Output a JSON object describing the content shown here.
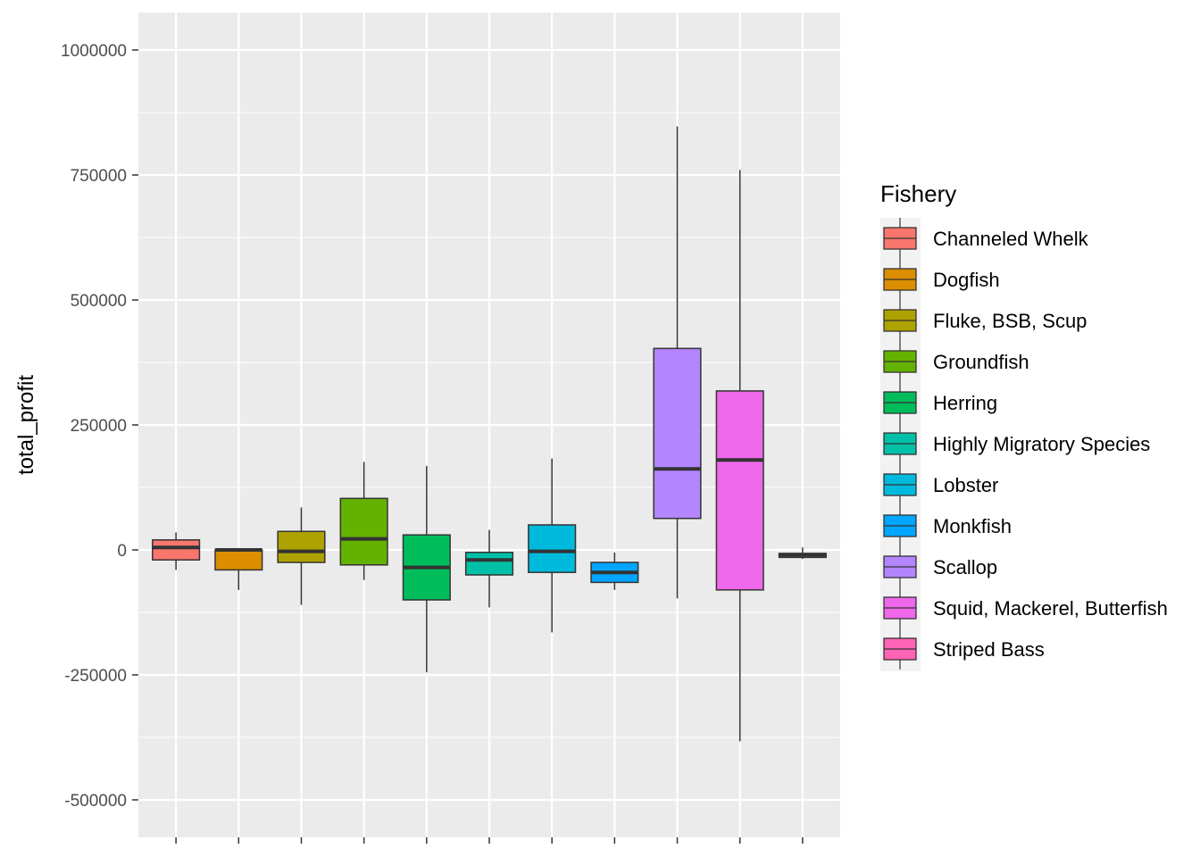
{
  "chart_data": {
    "type": "boxplot",
    "title": "",
    "xlabel": "",
    "ylabel": "total_profit",
    "ylim": [
      -575000,
      1075000
    ],
    "y_ticks": [
      -500000,
      -250000,
      0,
      250000,
      500000,
      750000,
      1000000
    ],
    "y_tick_labels": [
      "-500000",
      "-250000",
      "0",
      "250000",
      "500000",
      "750000",
      "1000000"
    ],
    "x_tick_labels_shown": false,
    "grid": true,
    "legend": {
      "title": "Fishery",
      "position": "right"
    },
    "series": [
      {
        "name": "Channeled Whelk",
        "color": "#F8766D",
        "whisker_low": -40000,
        "q1": -20000,
        "median": 5000,
        "q3": 20000,
        "whisker_high": 35000
      },
      {
        "name": "Dogfish",
        "color": "#DB8E00",
        "whisker_low": -80000,
        "q1": -40000,
        "median": 0,
        "q3": 0,
        "whisker_high": 0
      },
      {
        "name": "Fluke, BSB, Scup",
        "color": "#AEA200",
        "whisker_low": -110000,
        "q1": -25000,
        "median": -3000,
        "q3": 37000,
        "whisker_high": 85000
      },
      {
        "name": "Groundfish",
        "color": "#64B200",
        "whisker_low": -60000,
        "q1": -30000,
        "median": 22000,
        "q3": 103000,
        "whisker_high": 176000
      },
      {
        "name": "Herring",
        "color": "#00BD5C",
        "whisker_low": -245000,
        "q1": -100000,
        "median": -35000,
        "q3": 30000,
        "whisker_high": 168000
      },
      {
        "name": "Highly Migratory Species",
        "color": "#00C1A7",
        "whisker_low": -115000,
        "q1": -50000,
        "median": -20000,
        "q3": -5000,
        "whisker_high": 40000
      },
      {
        "name": "Lobster",
        "color": "#00BADE",
        "whisker_low": -165000,
        "q1": -45000,
        "median": -3000,
        "q3": 50000,
        "whisker_high": 183000
      },
      {
        "name": "Monkfish",
        "color": "#00A6FF",
        "whisker_low": -80000,
        "q1": -65000,
        "median": -45000,
        "q3": -25000,
        "whisker_high": -5000
      },
      {
        "name": "Scallop",
        "color": "#B385FF",
        "whisker_low": -97000,
        "q1": 63000,
        "median": 162000,
        "q3": 403000,
        "whisker_high": 847000
      },
      {
        "name": "Squid, Mackerel, Butterfish",
        "color": "#EF67EB",
        "whisker_low": -383000,
        "q1": -80000,
        "median": 180000,
        "q3": 318000,
        "whisker_high": 760000
      },
      {
        "name": "Striped Bass",
        "color": "#FF63B6",
        "whisker_low": -18000,
        "q1": -15000,
        "median": -10000,
        "q3": -7000,
        "whisker_high": 5000
      }
    ]
  }
}
